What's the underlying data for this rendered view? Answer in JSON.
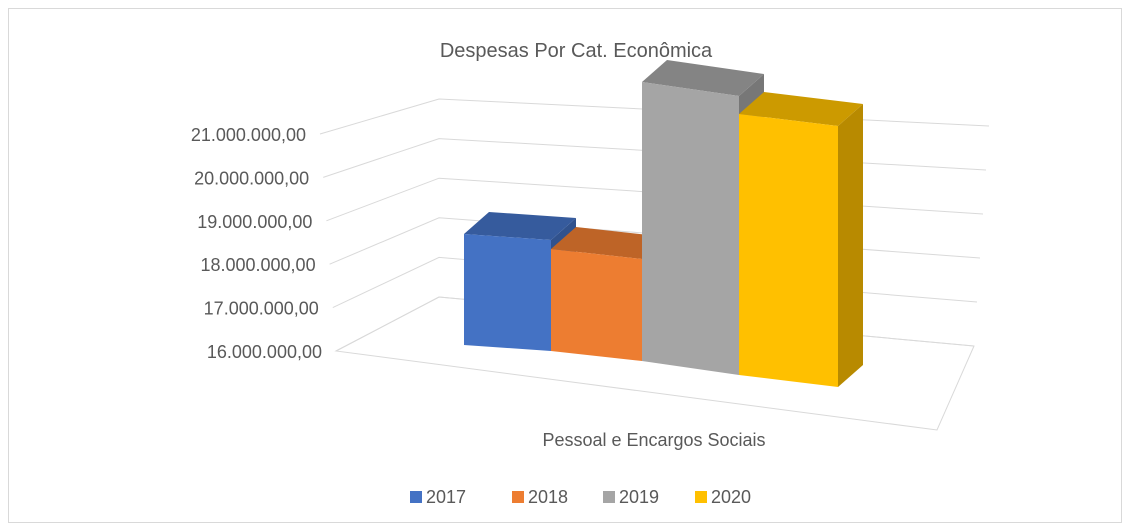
{
  "chart_data": {
    "type": "bar",
    "title": "Despesas Por Cat. Econômica",
    "xlabel": "Pessoal e Encargos Sociais",
    "ylabel": "",
    "categories": [
      "Pessoal e Encargos Sociais"
    ],
    "series": [
      {
        "name": "2017",
        "values": [
          17850000
        ],
        "color": "#4472C4"
      },
      {
        "name": "2018",
        "values": [
          17700000
        ],
        "color": "#ED7D31"
      },
      {
        "name": "2019",
        "values": [
          20650000
        ],
        "color": "#A5A5A5"
      },
      {
        "name": "2020",
        "values": [
          20350000
        ],
        "color": "#FFC000"
      }
    ],
    "ylim": [
      16000000,
      21000000
    ],
    "yticks": [
      "16.000.000,00",
      "17.000.000,00",
      "18.000.000,00",
      "19.000.000,00",
      "20.000.000,00",
      "21.000.000,00"
    ],
    "legend": "bottom",
    "grid": true,
    "style": "3d-column"
  }
}
